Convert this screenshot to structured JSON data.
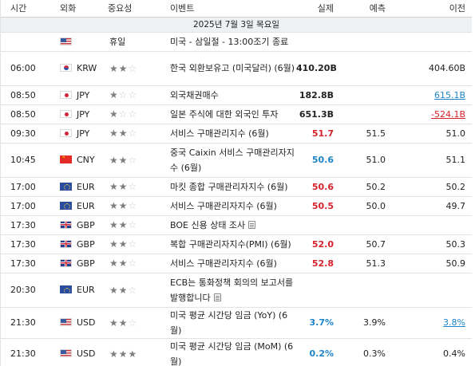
{
  "headers": {
    "time": "시간",
    "currency": "외화",
    "importance": "중요성",
    "event": "이벤트",
    "actual": "실제",
    "forecast": "예측",
    "previous": "이전"
  },
  "date_label": "2025년 7월 3일 목요일",
  "rows": [
    {
      "time": "",
      "flag": "us",
      "currency": "",
      "importance": "",
      "importance_text": "휴일",
      "event": "미국 - 삼일절 - 13:00조기 종료",
      "actual": "",
      "forecast": "",
      "previous": "",
      "doc": false,
      "tall": false
    },
    {
      "time": "06:00",
      "flag": "kr",
      "currency": "KRW",
      "importance": 2,
      "event": "한국 외환보유고 (미국달러) (6월)",
      "actual": "410.20B",
      "actual_color": "black",
      "forecast": "",
      "previous": "404.60B",
      "previous_style": "",
      "doc": false,
      "tall": true
    },
    {
      "time": "08:50",
      "flag": "jp",
      "currency": "JPY",
      "importance": 1,
      "event": "외국채권매수",
      "actual": "182.8B",
      "actual_color": "black",
      "forecast": "",
      "previous": "615.1B",
      "previous_style": "blue",
      "doc": false,
      "tall": false
    },
    {
      "time": "08:50",
      "flag": "jp",
      "currency": "JPY",
      "importance": 1,
      "event": "일본 주식에 대한 외국인 투자",
      "actual": "651.3B",
      "actual_color": "black",
      "forecast": "",
      "previous": "-524.1B",
      "previous_style": "red",
      "doc": false,
      "tall": false
    },
    {
      "time": "09:30",
      "flag": "jp",
      "currency": "JPY",
      "importance": 2,
      "event": "서비스 구매관리지수 (6월)",
      "actual": "51.7",
      "actual_color": "red",
      "forecast": "51.5",
      "previous": "51.0",
      "previous_style": "",
      "doc": false,
      "tall": false
    },
    {
      "time": "10:45",
      "flag": "cn",
      "currency": "CNY",
      "importance": 2,
      "event": "중국 Caixin 서비스 구매관리자지수 (6월)",
      "actual": "50.6",
      "actual_color": "blue",
      "forecast": "51.0",
      "previous": "51.1",
      "previous_style": "",
      "doc": false,
      "tall": true
    },
    {
      "time": "17:00",
      "flag": "eu",
      "currency": "EUR",
      "importance": 2,
      "event": "마킷 종합 구매관리자지수 (6월)",
      "actual": "50.6",
      "actual_color": "red",
      "forecast": "50.2",
      "previous": "50.2",
      "previous_style": "",
      "doc": false,
      "tall": false
    },
    {
      "time": "17:00",
      "flag": "eu",
      "currency": "EUR",
      "importance": 2,
      "event": "서비스 구매관리자지수 (6월)",
      "actual": "50.5",
      "actual_color": "red",
      "forecast": "50.0",
      "previous": "49.7",
      "previous_style": "",
      "doc": false,
      "tall": false
    },
    {
      "time": "17:30",
      "flag": "gb",
      "currency": "GBP",
      "importance": 2,
      "event": "BOE 신용 상태 조사",
      "actual": "",
      "actual_color": "black",
      "forecast": "",
      "previous": "",
      "previous_style": "",
      "doc": true,
      "tall": false
    },
    {
      "time": "17:30",
      "flag": "gb",
      "currency": "GBP",
      "importance": 2,
      "event": "복합 구매관리자지수(PMI) (6월)",
      "actual": "52.0",
      "actual_color": "red",
      "forecast": "50.7",
      "previous": "50.3",
      "previous_style": "",
      "doc": false,
      "tall": false
    },
    {
      "time": "17:30",
      "flag": "gb",
      "currency": "GBP",
      "importance": 2,
      "event": "서비스 구매관리자지수 (6월)",
      "actual": "52.8",
      "actual_color": "red",
      "forecast": "51.3",
      "previous": "50.9",
      "previous_style": "",
      "doc": false,
      "tall": false
    },
    {
      "time": "20:30",
      "flag": "eu",
      "currency": "EUR",
      "importance": 2,
      "event": "ECB는 통화정책 회의의 보고서를 발행합니다",
      "actual": "",
      "actual_color": "black",
      "forecast": "",
      "previous": "",
      "previous_style": "",
      "doc": true,
      "tall": true
    },
    {
      "time": "21:30",
      "flag": "us",
      "currency": "USD",
      "importance": 2,
      "event": "미국 평균 시간당 임금 (YoY) (6월)",
      "actual": "3.7%",
      "actual_color": "blue",
      "forecast": "3.9%",
      "previous": "3.8%",
      "previous_style": "blue",
      "doc": false,
      "tall": true
    },
    {
      "time": "21:30",
      "flag": "us",
      "currency": "USD",
      "importance": 3,
      "event": "미국 평균 시간당 임금 (MoM) (6월)",
      "actual": "0.2%",
      "actual_color": "blue",
      "forecast": "0.3%",
      "previous": "0.4%",
      "previous_style": "",
      "doc": false,
      "tall": true
    }
  ],
  "colors": {
    "up": "#d8212b",
    "down": "#1d84c7",
    "star_on": "#7d7d7d",
    "star_off": "#cfcfcf",
    "date_bg": "#eef1f4"
  }
}
